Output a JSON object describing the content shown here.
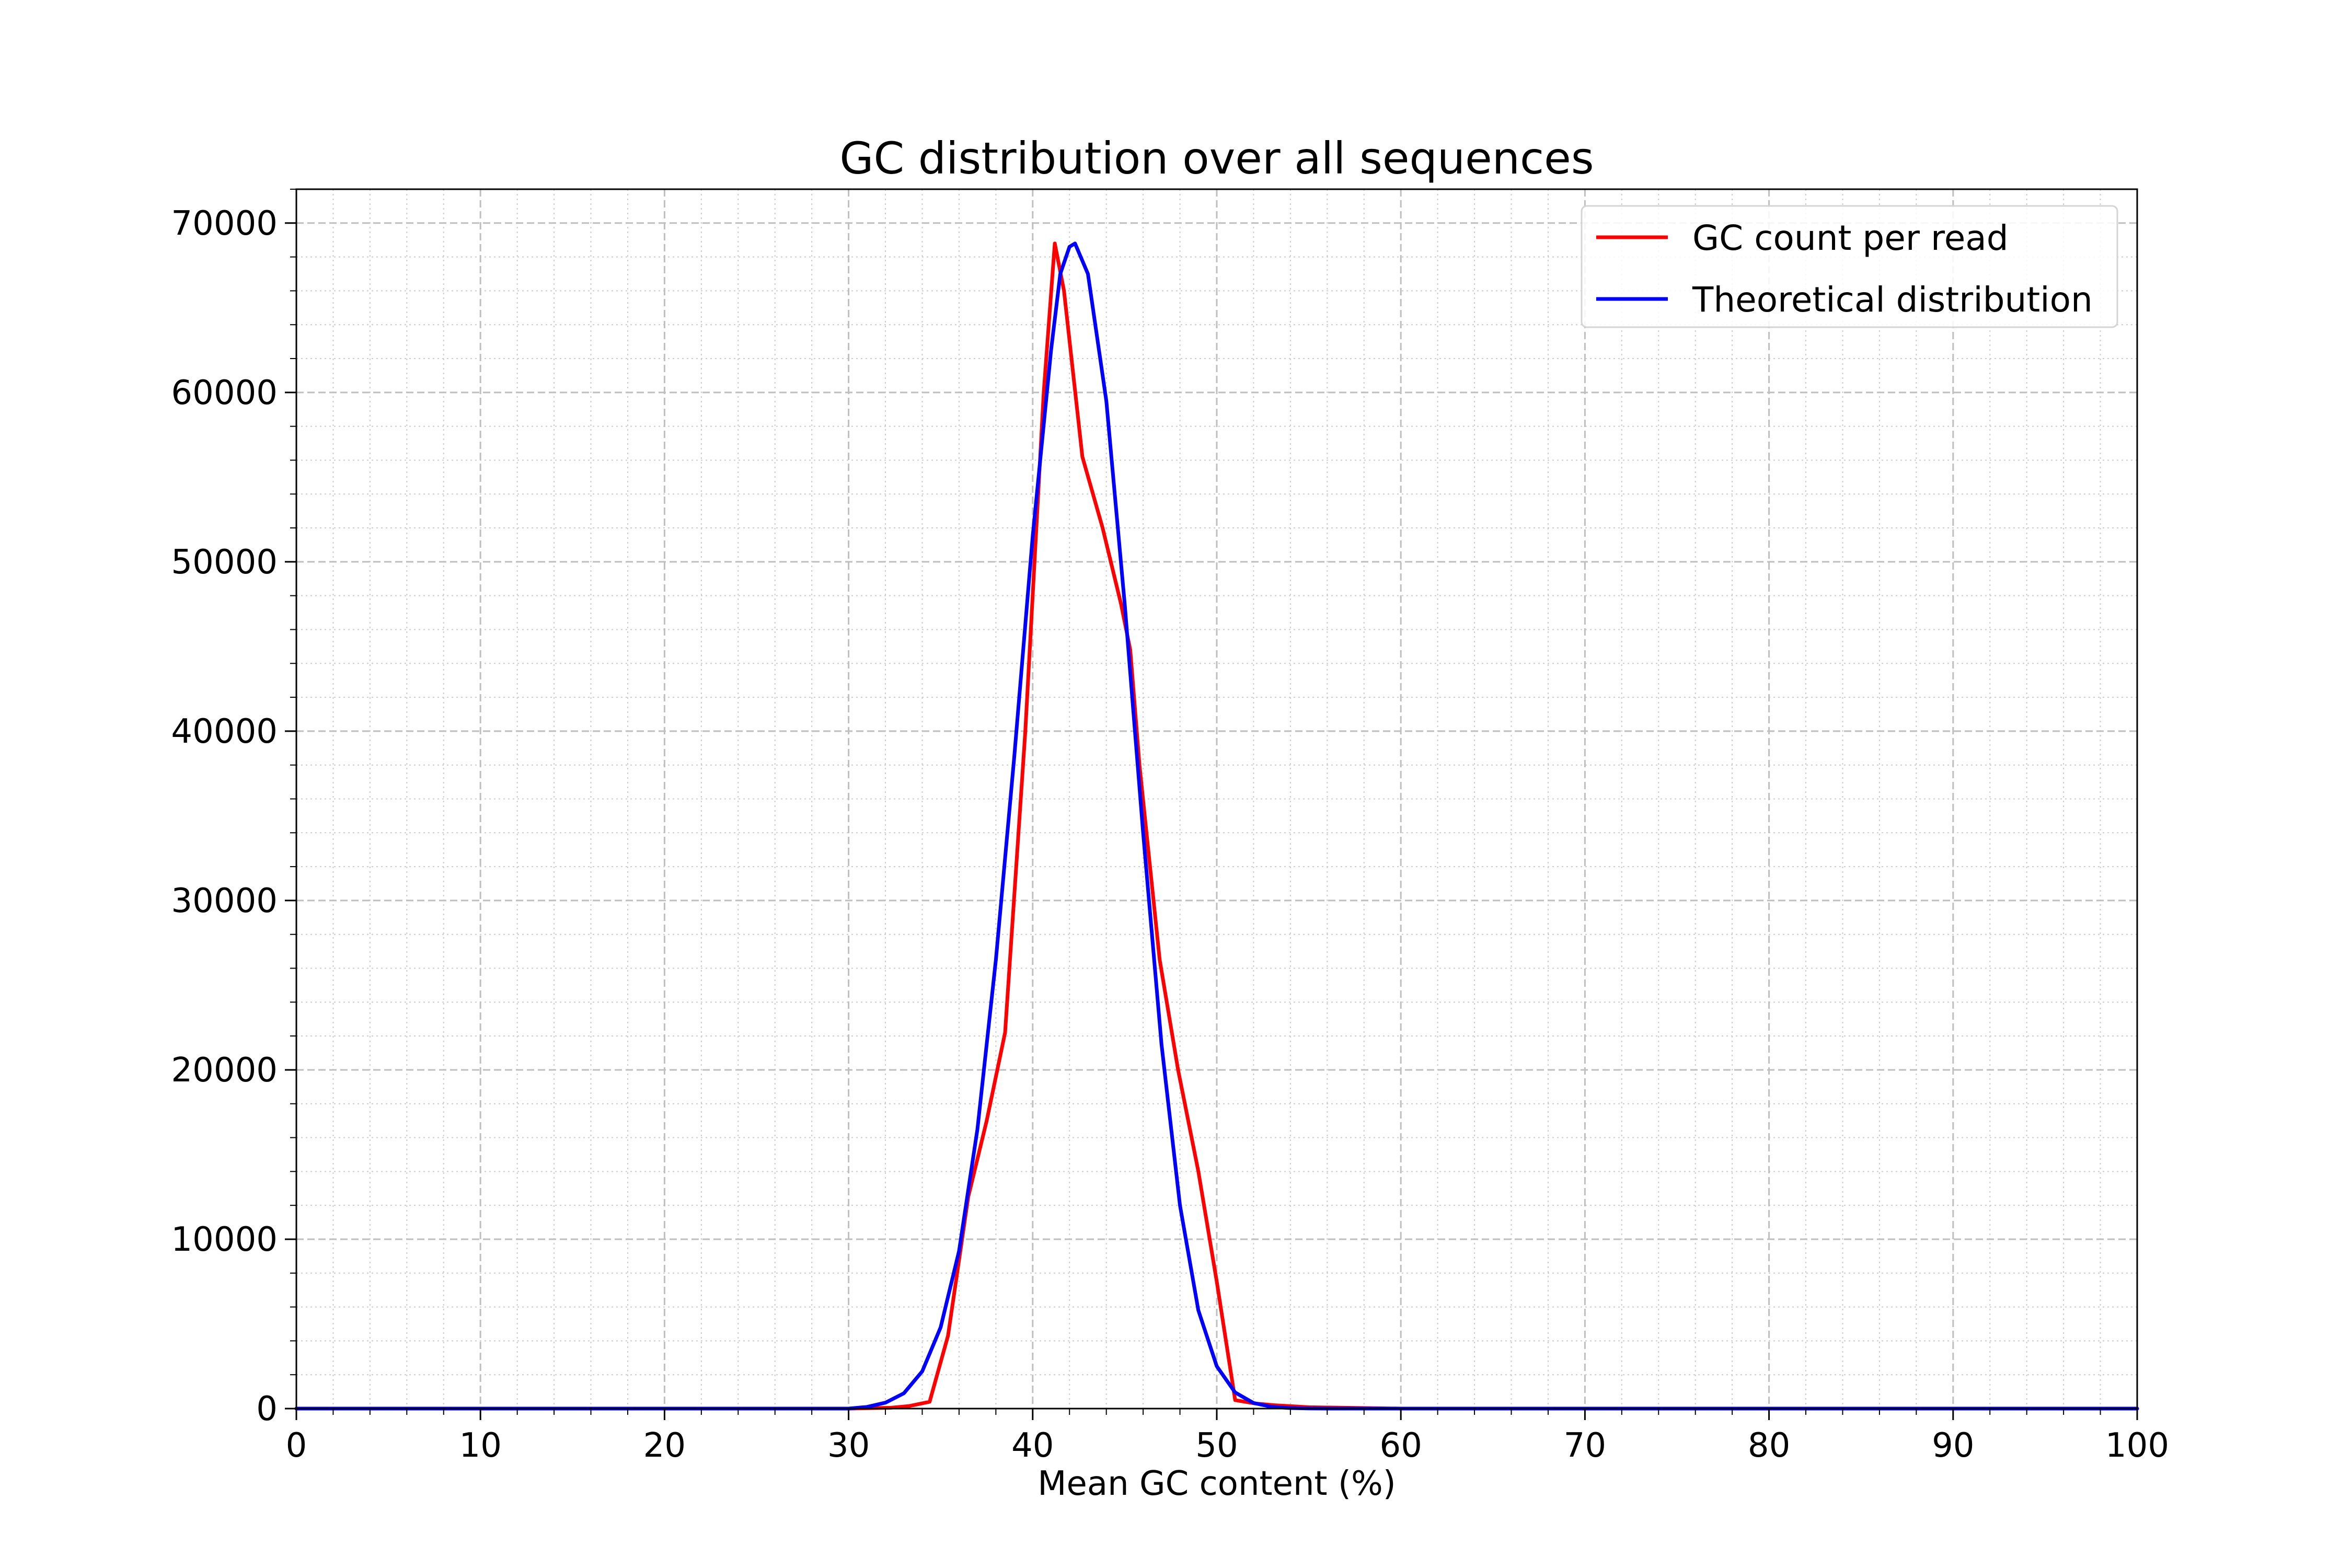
{
  "chart_data": {
    "type": "line",
    "title": "GC distribution over all sequences",
    "xlabel": "Mean GC content (%)",
    "ylabel": "",
    "xlim": [
      0,
      100
    ],
    "ylim": [
      0,
      72000
    ],
    "xticks": [
      0,
      10,
      20,
      30,
      40,
      50,
      60,
      70,
      80,
      90,
      100
    ],
    "yticks": [
      0,
      10000,
      20000,
      30000,
      40000,
      50000,
      60000,
      70000
    ],
    "grid": true,
    "legend_position": "top-right",
    "series": [
      {
        "name": "GC count per read",
        "color": "#ff0000",
        "x": [
          0,
          30,
          32.3,
          33.3,
          34.4,
          35.4,
          36.5,
          37.5,
          38.5,
          39.6,
          40.6,
          41.2,
          41.7,
          42.7,
          43.8,
          44.8,
          45.3,
          45.8,
          46.9,
          47.9,
          49.0,
          50.0,
          51.0,
          52.1,
          53.1,
          55,
          60,
          100
        ],
        "y": [
          0,
          0,
          50,
          150,
          400,
          4300,
          12500,
          17000,
          22200,
          40000,
          60000,
          68800,
          66000,
          56200,
          52000,
          47500,
          44800,
          38000,
          26500,
          20000,
          14000,
          7500,
          500,
          300,
          200,
          80,
          0,
          0
        ]
      },
      {
        "name": "Theoretical distribution",
        "color": "#0000ff",
        "x": [
          0,
          30,
          31,
          32,
          33,
          34,
          35,
          36,
          37,
          38,
          39,
          40,
          41,
          41.5,
          42,
          42.3,
          43,
          44,
          45,
          46,
          47,
          48,
          49,
          50,
          51,
          52,
          53,
          54,
          55,
          56,
          60,
          100
        ],
        "y": [
          0,
          0,
          100,
          350,
          900,
          2200,
          4800,
          9300,
          16500,
          26500,
          38500,
          51500,
          62500,
          67000,
          68600,
          68800,
          67000,
          59500,
          47500,
          34000,
          21500,
          12000,
          5800,
          2500,
          950,
          330,
          100,
          30,
          10,
          0,
          0,
          0
        ]
      }
    ]
  }
}
